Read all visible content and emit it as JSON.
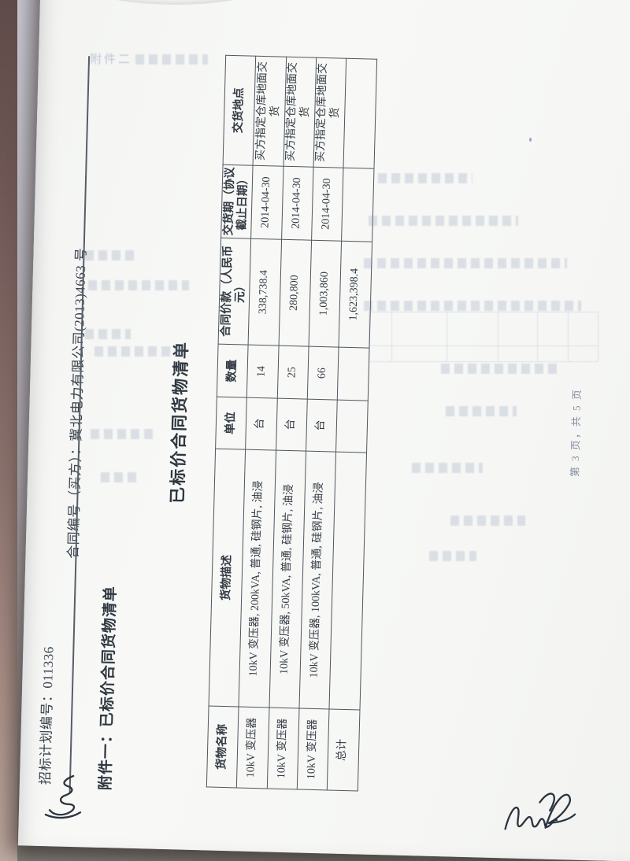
{
  "document": {
    "header": {
      "plan_no_line": "招标计划编号：011336",
      "contract_no_line": "合同编号（买方）：冀北电力有限公司(2013)4663 号"
    },
    "attachment_heading": "附件一：已标价合同货物清单",
    "table_title": "已标价合同货物清单",
    "goods_table": {
      "columns": [
        "货物名称",
        "货物描述",
        "单位",
        "数量",
        "合同价款（人民币元）",
        "交货期（协议截止日期）",
        "交货地点"
      ],
      "rows": [
        [
          "10kV 变压器",
          "10kV 变压器, 200kVA, 普通, 硅钢片, 油浸",
          "台",
          "14",
          "338,738.4",
          "2014-04-30",
          "买方指定仓库地面交货"
        ],
        [
          "10kV 变压器",
          "10kV 变压器, 50kVA, 普通, 硅钢片, 油浸",
          "台",
          "25",
          "280,800",
          "2014-04-30",
          "买方指定仓库地面交货"
        ],
        [
          "10kV 变压器",
          "10kV 变压器, 100kVA, 普通, 硅钢片, 油浸",
          "台",
          "66",
          "1,003,860",
          "2014-04-30",
          "买方指定仓库地面交货"
        ]
      ],
      "total_row": {
        "label": "总计",
        "total_price": "1,623,398.4"
      }
    },
    "footer": {
      "page_indicator": "第 3 页，共 5 页"
    },
    "bleedthrough_visible_text": "附件二"
  }
}
